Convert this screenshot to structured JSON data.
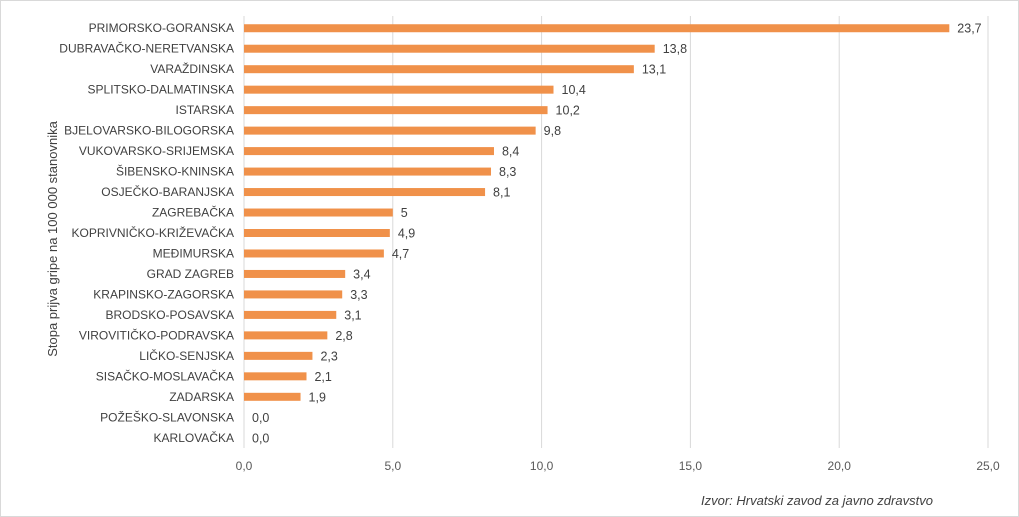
{
  "chart_data": {
    "type": "bar",
    "orientation": "horizontal",
    "categories": [
      "PRIMORSKO-GORANSKA",
      "DUBRAVAČKO-NERETVANSKA",
      "VARAŽDINSKA",
      "SPLITSKO-DALMATINSKA",
      "ISTARSKA",
      "BJELOVARSKO-BILOGORSKA",
      "VUKOVARSKO-SRIJEMSKA",
      "ŠIBENSKO-KNINSKA",
      "OSJEČKO-BARANJSKA",
      "ZAGREBAČKA",
      "KOPRIVNIČKO-KRIŽEVAČKA",
      "MEĐIMURSKA",
      "GRAD ZAGREB",
      "KRAPINSKO-ZAGORSKA",
      "BRODSKO-POSAVSKA",
      "VIROVITIČKO-PODRAVSKA",
      "LIČKO-SENJSKA",
      "SISAČKO-MOSLAVAČKA",
      "ZADARSKA",
      "POŽEŠKO-SLAVONSKA",
      "KARLOVAČKA"
    ],
    "values": [
      23.7,
      13.8,
      13.1,
      10.4,
      10.2,
      9.8,
      8.4,
      8.3,
      8.1,
      5,
      4.9,
      4.7,
      3.4,
      3.3,
      3.1,
      2.8,
      2.3,
      2.1,
      1.9,
      0.0,
      0.0
    ],
    "value_labels": [
      "23,7",
      "13,8",
      "13,1",
      "10,4",
      "10,2",
      "9,8",
      "8,4",
      "8,3",
      "8,1",
      "5",
      "4,9",
      "4,7",
      "3,4",
      "3,3",
      "3,1",
      "2,8",
      "2,3",
      "2,1",
      "1,9",
      "0,0",
      "0,0"
    ],
    "title": "",
    "xlabel": "",
    "ylabel": "Stopa prijva gripe na 100 000 stanovnika",
    "xlim": [
      0,
      25
    ],
    "x_ticks": [
      0,
      5,
      10,
      15,
      20,
      25
    ],
    "x_tick_labels": [
      "0,0",
      "5,0",
      "10,0",
      "15,0",
      "20,0",
      "25,0"
    ],
    "grid": "vertical",
    "legend": "none",
    "bar_color": "#f0914a",
    "grid_color": "#d9d9d9"
  },
  "source_note": "Izvor: Hrvatski zavod za javno zdravstvo"
}
